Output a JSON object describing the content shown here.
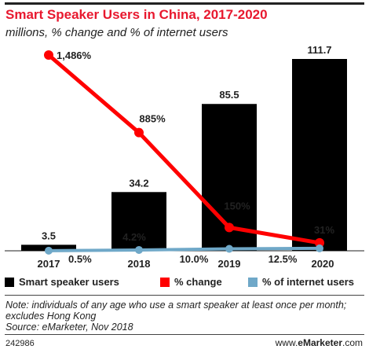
{
  "header": {
    "title": "Smart Speaker Users in China, 2017-2020",
    "subtitle": "millions, % change and % of internet users"
  },
  "chart_data": {
    "type": "bar",
    "categories": [
      "2017",
      "2018",
      "2019",
      "2020"
    ],
    "series": [
      {
        "name": "Smart speaker users",
        "kind": "bar",
        "color": "#000000",
        "values": [
          3.5,
          34.2,
          85.5,
          111.7
        ],
        "labels": [
          "3.5",
          "34.2",
          "85.5",
          "111.7"
        ]
      },
      {
        "name": "% change",
        "kind": "line",
        "color": "#ff0000",
        "values": [
          1486,
          885,
          150,
          31
        ],
        "labels": [
          "1,486%",
          "885%",
          "150%",
          "31%"
        ]
      },
      {
        "name": "% of internet users",
        "kind": "line",
        "color": "#6fa8c8",
        "values": [
          0.5,
          4.2,
          10.0,
          12.5
        ],
        "labels": [
          "0.5%",
          "4.2%",
          "10.0%",
          "12.5%"
        ]
      }
    ],
    "grid": false,
    "legend_position": "bottom"
  },
  "note": {
    "line1": "Note: individuals of any age who use a smart speaker at least once per month; excludes Hong Kong",
    "line2": "Source: eMarketer, Nov 2018"
  },
  "footer": {
    "chart_id": "242986",
    "brand_prefix": "www.",
    "brand_name": "eMarketer",
    "brand_suffix": ".com"
  }
}
